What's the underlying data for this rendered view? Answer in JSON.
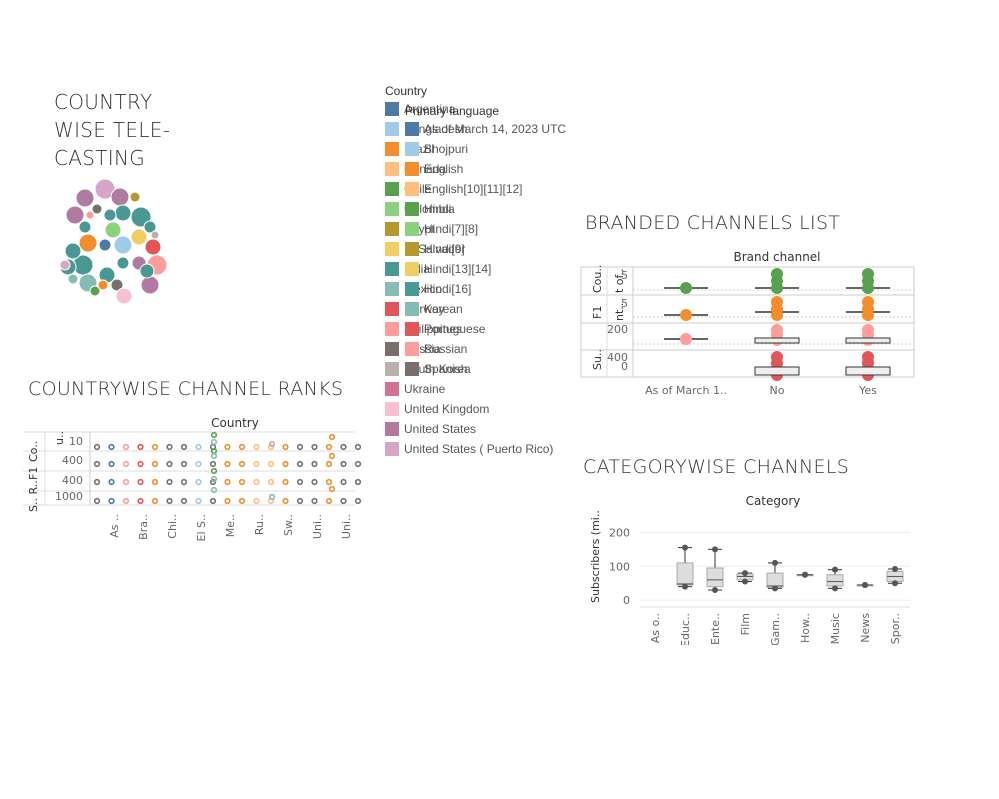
{
  "colors": {
    "Argentina": "#4e79a7",
    "Bangladesh": "#a0cbe8",
    "Brazil": "#f28e2b",
    "Canada": "#ffbe7d",
    "Chile": "#59a14f",
    "Colombia": "#8cd17d",
    "Egypt": "#b6992d",
    "El Salvador": "#f1ce63",
    "India": "#499894",
    "Mexico": "#86bcb6",
    "Norway": "#e15759",
    "Philippines": "#ff9d9a",
    "Russia": "#79706e",
    "South Korea": "#bab0ac",
    "Ukraine": "#d37295",
    "United Kingdom": "#fabfd2",
    "United States": "#b07aa1",
    "United States ( Puerto Rico)": "#d4a6c8"
  },
  "dashboard": {
    "title_lines": [
      "COUNTRY",
      "WISE  TELE-",
      "CASTING"
    ],
    "ranks_title": "COUNTRYWISE CHANNEL RANKS",
    "branded_title": "BRANDED CHANNELS LIST",
    "category_title": "CATEGORYWISE CHANNELS"
  },
  "legend_country": {
    "title": "Country",
    "items": [
      {
        "label": "Argentina",
        "color": "#4e79a7"
      },
      {
        "label": "Bangladesh",
        "color": "#a0cbe8"
      },
      {
        "label": "Brazil",
        "color": "#f28e2b"
      },
      {
        "label": "Canada",
        "color": "#ffbe7d"
      },
      {
        "label": "Chile",
        "color": "#59a14f"
      },
      {
        "label": "Colombia",
        "color": "#8cd17d"
      },
      {
        "label": "Egypt",
        "color": "#b6992d"
      },
      {
        "label": "El Salvador",
        "color": "#f1ce63"
      },
      {
        "label": "India",
        "color": "#499894"
      },
      {
        "label": "Mexico",
        "color": "#86bcb6"
      },
      {
        "label": "Norway",
        "color": "#e15759"
      },
      {
        "label": "Philippines",
        "color": "#ff9d9a"
      },
      {
        "label": "Russia",
        "color": "#79706e"
      },
      {
        "label": "South Korea",
        "color": "#bab0ac"
      },
      {
        "label": "Ukraine",
        "color": "#d37295"
      },
      {
        "label": "United Kingdom",
        "color": "#fabfd2"
      },
      {
        "label": "United States",
        "color": "#b07aa1"
      },
      {
        "label": "United States ( Puerto Rico)",
        "color": "#d4a6c8"
      }
    ]
  },
  "legend_language": {
    "title": "Primary language",
    "items": [
      {
        "label": "As of March 14, 2023 UTC",
        "color": "#4e79a7"
      },
      {
        "label": "Bhojpuri",
        "color": "#a0cbe8"
      },
      {
        "label": "English",
        "color": "#f28e2b"
      },
      {
        "label": "English[10][11][12]",
        "color": "#ffbe7d"
      },
      {
        "label": "Hindi",
        "color": "#59a14f"
      },
      {
        "label": "Hindi[7][8]",
        "color": "#8cd17d"
      },
      {
        "label": "Hindi[9]",
        "color": "#b6992d"
      },
      {
        "label": "Hindi[13][14]",
        "color": "#f1ce63"
      },
      {
        "label": "Hindi[16]",
        "color": "#499894"
      },
      {
        "label": "Korean",
        "color": "#86bcb6"
      },
      {
        "label": "Portuguese",
        "color": "#e15759"
      },
      {
        "label": "Russian",
        "color": "#ff9d9a"
      },
      {
        "label": "Spanish",
        "color": "#79706e"
      }
    ]
  },
  "chart_data": [
    {
      "type": "scatter",
      "name": "bubbles",
      "bubbles": [
        {
          "c": "United States",
          "r": 9
        },
        {
          "c": "United States ( Puerto Rico)",
          "r": 10
        },
        {
          "c": "United States",
          "r": 9
        },
        {
          "c": "United States",
          "r": 9
        },
        {
          "c": "Russia",
          "r": 5
        },
        {
          "c": "India",
          "r": 8
        },
        {
          "c": "India",
          "r": 10
        },
        {
          "c": "Philippines",
          "r": 4
        },
        {
          "c": "India",
          "r": 6
        },
        {
          "c": "Colombia",
          "r": 8
        },
        {
          "c": "Argentina",
          "r": 6
        },
        {
          "c": "India",
          "r": 6
        },
        {
          "c": "Brazil",
          "r": 9
        },
        {
          "c": "Bangladesh",
          "r": 9
        },
        {
          "c": "El Salvador",
          "r": 8
        },
        {
          "c": "Norway",
          "r": 8
        },
        {
          "c": "India",
          "r": 10
        },
        {
          "c": "India",
          "r": 8
        },
        {
          "c": "India",
          "r": 8
        },
        {
          "c": "Philippines",
          "r": 10
        },
        {
          "c": "Mexico",
          "r": 9
        },
        {
          "c": "India",
          "r": 8
        },
        {
          "c": "Russia",
          "r": 6
        },
        {
          "c": "United Kingdom",
          "r": 8
        },
        {
          "c": "United States",
          "r": 9
        },
        {
          "c": "India",
          "r": 6
        },
        {
          "c": "United States",
          "r": 7
        },
        {
          "c": "Chile",
          "r": 5
        },
        {
          "c": "Egypt",
          "r": 5
        },
        {
          "c": "India",
          "r": 6
        },
        {
          "c": "South Korea",
          "r": 4
        },
        {
          "c": "United States ( Puerto Rico)",
          "r": 5
        },
        {
          "c": "India",
          "r": 7
        },
        {
          "c": "Mexico",
          "r": 5
        },
        {
          "c": "Brazil",
          "r": 5
        }
      ]
    },
    {
      "type": "scatter",
      "name": "channel-ranks",
      "column_header": "Country",
      "row_labels": [
        "Co..",
        "F1",
        "S.. R.."
      ],
      "row_label_full": [
        "Cou..",
        "F1",
        "S.. R.."
      ],
      "tick_labels": [
        "10",
        "400",
        "400",
        "1000"
      ],
      "x_labels": [
        "As ..",
        "Bra..",
        "Chi..",
        "El S..",
        "Me..",
        "Ru..",
        "Sw..",
        "Uni..",
        "Uni.."
      ]
    },
    {
      "type": "scatter",
      "name": "branded-channels",
      "column_header": "Brand channel",
      "categories": [
        "As of March 1..",
        "No",
        "Yes"
      ],
      "row_labels": [
        "Cou..",
        "t of..",
        "nt..",
        "F1",
        "Su.."
      ],
      "tick_labels": [
        "5",
        "5",
        "200",
        "400",
        "0"
      ]
    },
    {
      "type": "bar",
      "name": "category-boxplot",
      "column_header": "Category",
      "categories": [
        "As o..",
        "Educ..",
        "Ente..",
        "Film",
        "Gam..",
        "How..",
        "Music",
        "News",
        "Spor.."
      ],
      "ylabel": "Subscribers (mi..",
      "yticks": [
        0,
        100,
        200
      ],
      "ylim": [
        -20,
        260
      ],
      "boxes": [
        null,
        {
          "min": 40,
          "q1": 45,
          "q3": 110,
          "max": 155,
          "med": 48
        },
        {
          "min": 30,
          "q1": 40,
          "q3": 95,
          "max": 150,
          "med": 60
        },
        {
          "min": 55,
          "q1": 60,
          "q3": 78,
          "max": 80,
          "med": 70
        },
        {
          "min": 35,
          "q1": 38,
          "q3": 80,
          "max": 110,
          "med": 42
        },
        {
          "min": 75,
          "q1": 75,
          "q3": 75,
          "max": 75,
          "med": 75
        },
        {
          "min": 35,
          "q1": 42,
          "q3": 75,
          "max": 90,
          "med": 55
        },
        {
          "min": 45,
          "q1": 45,
          "q3": 45,
          "max": 45,
          "med": 45
        },
        {
          "min": 50,
          "q1": 55,
          "q3": 85,
          "max": 92,
          "med": 70
        }
      ]
    }
  ]
}
